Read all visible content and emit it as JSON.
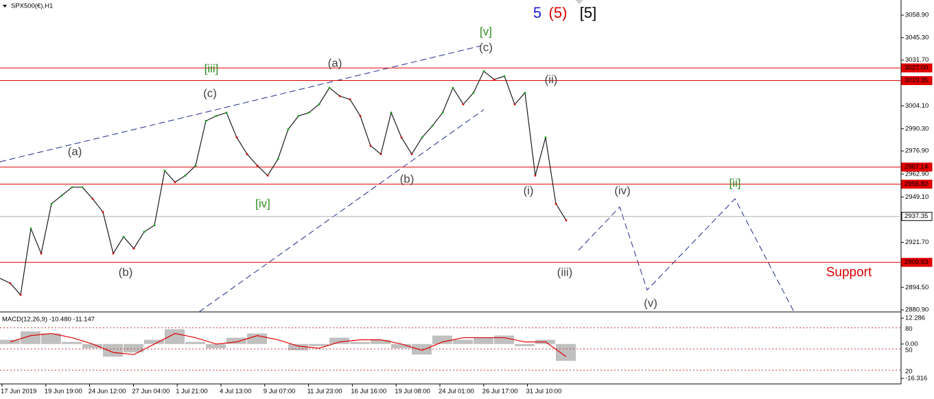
{
  "chart_data": [
    {
      "type": "line",
      "title": "SPX500(€),H1",
      "color": "#1a1a1a",
      "values": [
        2900,
        2897,
        2890,
        2930,
        2915,
        2945,
        2950,
        2955,
        2955,
        2948,
        2940,
        2915,
        2925,
        2918,
        2928,
        2932,
        2965,
        2958,
        2962,
        2968,
        2995,
        2998,
        3000,
        2985,
        2975,
        2968,
        2962,
        2972,
        2990,
        2998,
        3000,
        3005,
        3015,
        3010,
        3008,
        2998,
        2980,
        2975,
        3000,
        2985,
        2975,
        2985,
        2992,
        3000,
        3015,
        3005,
        3012,
        3025,
        3020,
        3022,
        3005,
        3012,
        2962,
        2985,
        2945,
        2935
      ],
      "ylim": [
        2879.7,
        3068.0
      ],
      "yticks": [
        {
          "value": 3058.9,
          "label": "3058.90"
        },
        {
          "value": 3045.3,
          "label": "3045.30"
        },
        {
          "value": 3031.7,
          "label": "3031.70"
        },
        {
          "value": 3004.1,
          "label": "3004.10"
        },
        {
          "value": 2990.3,
          "label": "2990.30"
        },
        {
          "value": 2976.9,
          "label": "2976.90"
        },
        {
          "value": 2962.9,
          "label": "2962.90"
        },
        {
          "value": 2949.1,
          "label": "2949.10"
        },
        {
          "value": 2921.7,
          "label": "2921.70"
        },
        {
          "value": 2894.5,
          "label": "2894.50"
        },
        {
          "value": 2880.9,
          "label": "2880.90"
        }
      ],
      "levels": [
        {
          "value": 3027.0,
          "label": "3027.00",
          "color": "#e00000"
        },
        {
          "value": 3019.35,
          "label": "3019.35",
          "color": "#e00000"
        },
        {
          "value": 2967.14,
          "label": "2967.14",
          "color": "#e00000"
        },
        {
          "value": 2956.82,
          "label": "2956.82",
          "color": "#e00000"
        },
        {
          "value": 2937.35,
          "label": "2937.35",
          "color": "#b0b0b0"
        },
        {
          "value": 2909.63,
          "label": "2909.63",
          "color": "#e00000"
        }
      ],
      "time_labels": [
        "17 Jun 2019",
        "19 Jun 19:00",
        "24 Jun 12:00",
        "27 Jun 04:00",
        "1 Jul 21:00",
        "4 Jul 13:00",
        "9 Jul 07:00",
        "11 Jul 23:00",
        "16 Jul 16:00",
        "19 Jul 08:00",
        "24 Jul 01:00",
        "26 Jul 17:00",
        "31 Jul 10:00"
      ],
      "annotations": [
        {
          "text": "5",
          "color": "#1c1cd0"
        },
        {
          "text": "(5)",
          "color": "#e00000"
        },
        {
          "text": "[5]",
          "color": "#000000"
        },
        {
          "text": "[v]",
          "color": "#2e8b1e"
        },
        {
          "text": "(c)",
          "color": "#444444"
        },
        {
          "text": "(a)",
          "color": "#444444"
        },
        {
          "text": "[iii]",
          "color": "#2e8b1e"
        },
        {
          "text": "(ii)",
          "color": "#444444"
        },
        {
          "text": "(c)",
          "color": "#444444"
        },
        {
          "text": "(a)",
          "color": "#444444"
        },
        {
          "text": "(b)",
          "color": "#444444"
        },
        {
          "text": "(i)",
          "color": "#444444"
        },
        {
          "text": "(iv)",
          "color": "#444444"
        },
        {
          "text": "[ii]",
          "color": "#2e8b1e"
        },
        {
          "text": "[iv]",
          "color": "#2e8b1e"
        },
        {
          "text": "(b)",
          "color": "#444444"
        },
        {
          "text": "(iii)",
          "color": "#444444"
        },
        {
          "text": "(v)",
          "color": "#444444"
        },
        {
          "text": "Support",
          "color": "#e00000"
        }
      ]
    },
    {
      "type": "macd",
      "title": "MACD(12,26,9) -10.480 -11.147",
      "series": [
        {
          "color": "#c0c0c0",
          "values": [
            2,
            6,
            5,
            1,
            -2,
            -6,
            -4,
            2,
            7,
            1,
            -2,
            3,
            5,
            0,
            -3,
            -1,
            3,
            1,
            2,
            -2,
            -5,
            4,
            2,
            3,
            4,
            -1,
            2,
            -8
          ]
        },
        {
          "color": "#e00000",
          "values": [
            1,
            4,
            5,
            3,
            0,
            -4,
            -5,
            0,
            5,
            3,
            0,
            1,
            4,
            2,
            -1,
            -2,
            1,
            2,
            2,
            0,
            -3,
            1,
            3,
            3,
            3,
            1,
            1,
            -6
          ]
        }
      ],
      "ylim": [
        -24.44,
        14.89
      ],
      "yticks": [
        12.286,
        {
          "value": 0,
          "label": "0.00"
        },
        -16.316
      ],
      "y2lim": [
        -15.8,
        101.3
      ],
      "y2ticks": [
        80,
        50,
        20
      ]
    }
  ]
}
